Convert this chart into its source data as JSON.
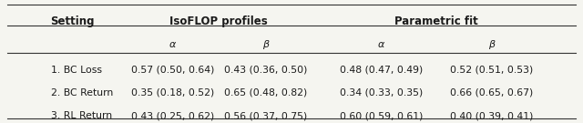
{
  "col_headers_top": [
    "IsoFLOP profiles",
    "Parametric fit"
  ],
  "col_headers_mid": [
    "α",
    "β",
    "α",
    "β"
  ],
  "row_header": "Setting",
  "rows": [
    [
      "1. BC Loss",
      "0.57 (0.50, 0.64)",
      "0.43 (0.36, 0.50)",
      "0.48 (0.47, 0.49)",
      "0.52 (0.51, 0.53)"
    ],
    [
      "2. BC Return",
      "0.35 (0.18, 0.52)",
      "0.65 (0.48, 0.82)",
      "0.34 (0.33, 0.35)",
      "0.66 (0.65, 0.67)"
    ],
    [
      "3. RL Return",
      "0.43 (0.25, 0.62)",
      "0.56 (0.37, 0.75)",
      "0.60 (0.59, 0.61)",
      "0.40 (0.39, 0.41)"
    ]
  ],
  "bg_color": "#f5f5f0",
  "text_color": "#1a1a1a",
  "line_color": "#333333"
}
